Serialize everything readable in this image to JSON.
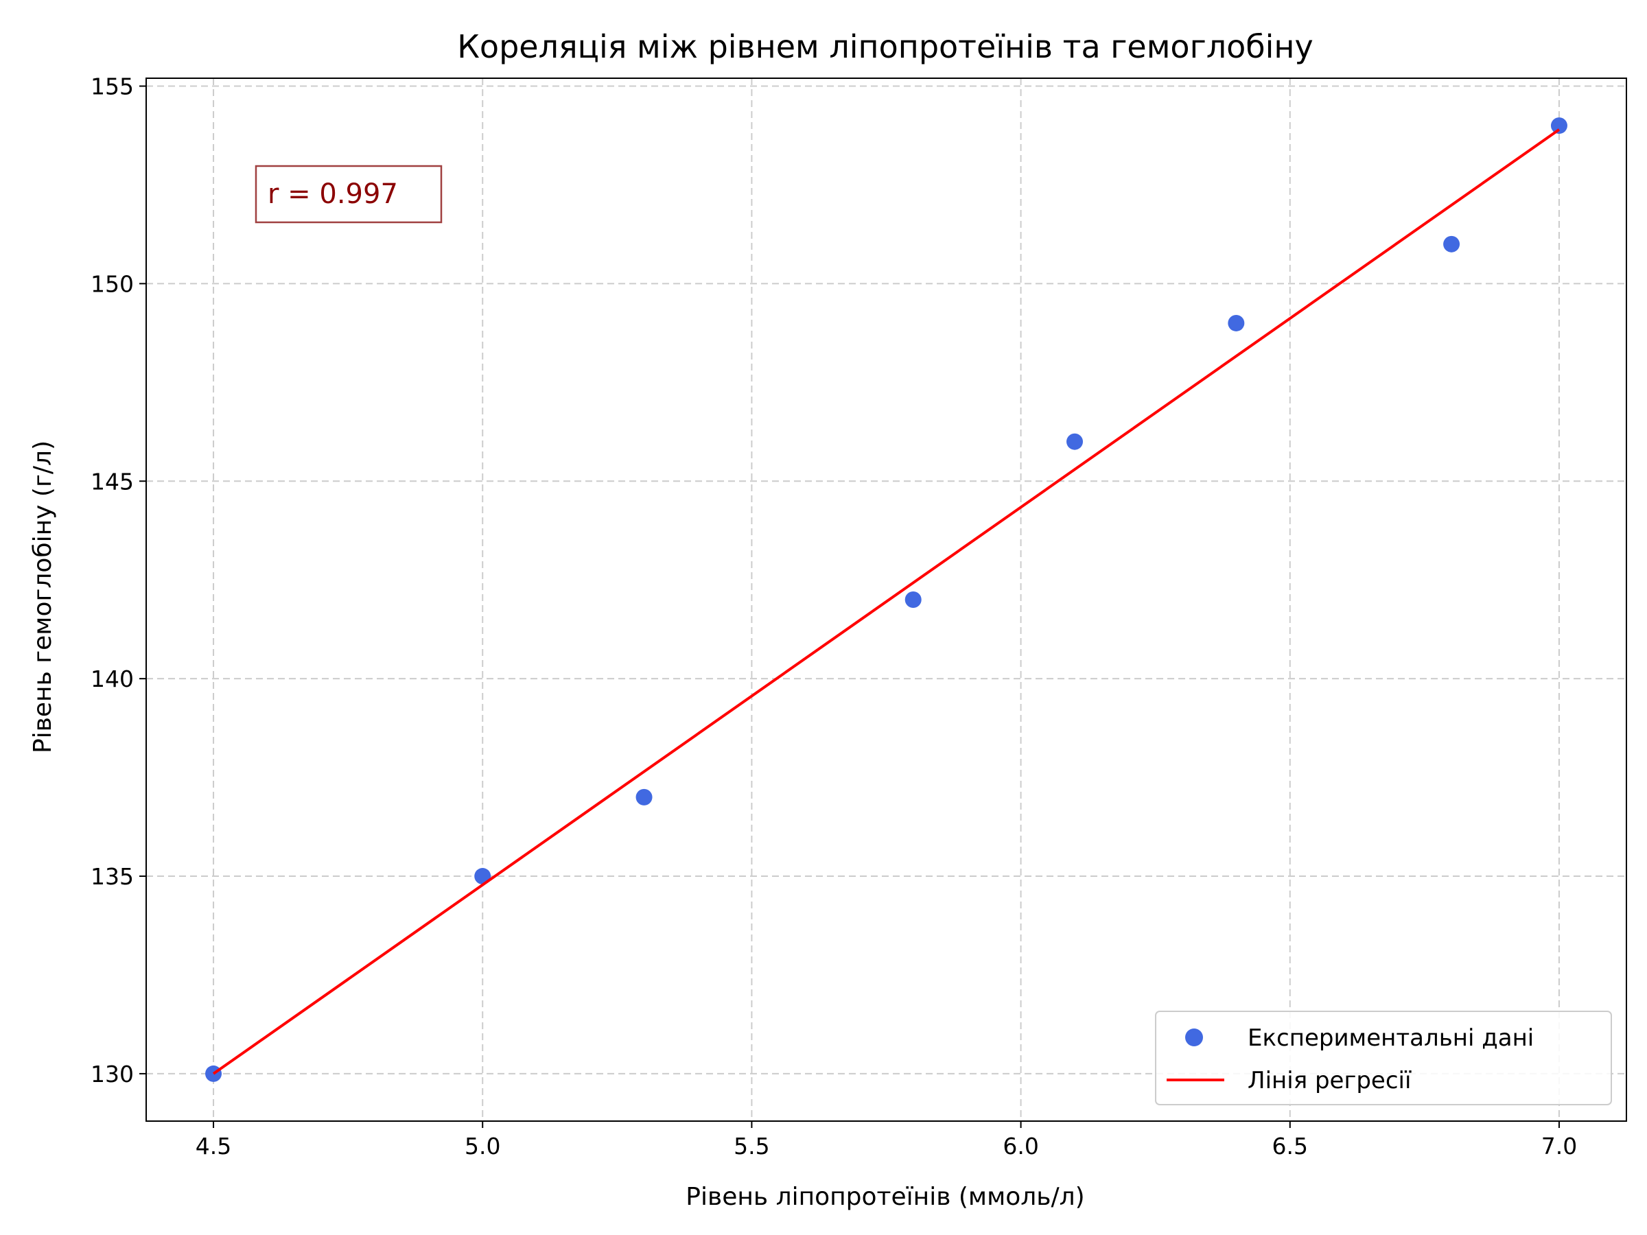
{
  "chart_data": {
    "type": "scatter",
    "title": "Кореляція між рівнем ліпопротеїнів та гемоглобіну",
    "xlabel": "Рівень ліпопротеїнів (ммоль/л)",
    "ylabel": "Рівень гемоглобіну (г/л)",
    "xlim": [
      4.375,
      7.125
    ],
    "ylim": [
      128.8,
      155.2
    ],
    "xticks": [
      "4.5",
      "5.0",
      "5.5",
      "6.0",
      "6.5",
      "7.0"
    ],
    "yticks": [
      "130",
      "135",
      "140",
      "145",
      "150",
      "155"
    ],
    "grid": true,
    "legend_position": "lower-right",
    "series": [
      {
        "name": "Експериментальні дані",
        "kind": "scatter",
        "color": "#4169E1",
        "x": [
          4.5,
          5.0,
          5.3,
          5.8,
          6.1,
          6.4,
          6.8,
          7.0
        ],
        "y": [
          130,
          135,
          137,
          142,
          146,
          149,
          151,
          154
        ]
      },
      {
        "name": "Лінія регресії",
        "kind": "line",
        "color": "#FF0000",
        "x": [
          4.5,
          7.0
        ],
        "y": [
          130.0,
          153.9
        ]
      }
    ],
    "annotation": {
      "text": "r = 0.997",
      "color": "#8B0000",
      "position": "top-left"
    }
  }
}
